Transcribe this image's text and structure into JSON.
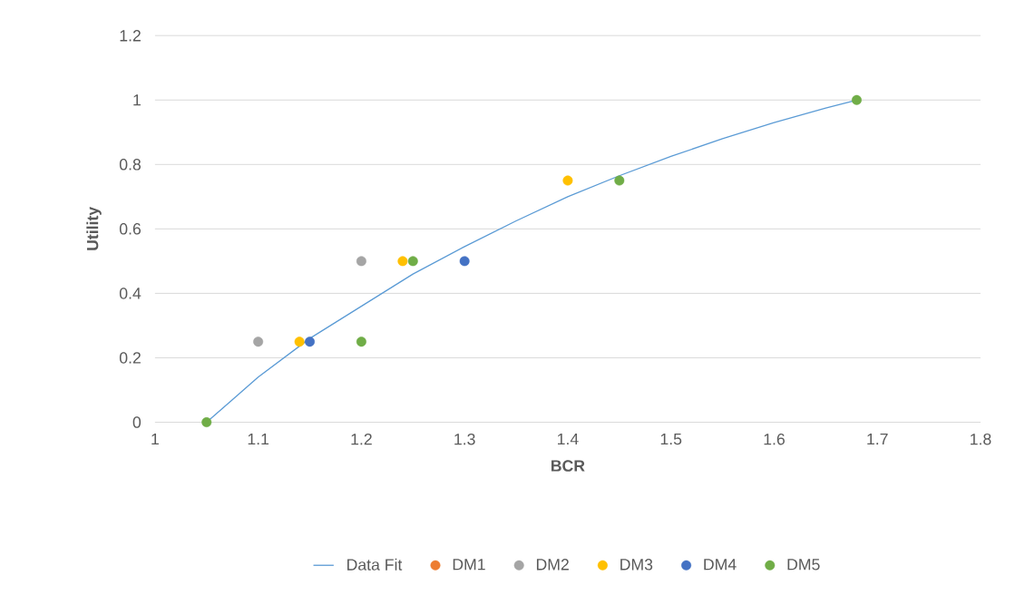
{
  "chart_data": {
    "type": "scatter",
    "xlabel": "BCR",
    "ylabel": "Utility",
    "xlim": [
      1,
      1.8
    ],
    "xticks": [
      1,
      1.1,
      1.2,
      1.3,
      1.4,
      1.5,
      1.6,
      1.7,
      1.8
    ],
    "ylim": [
      0,
      1.2
    ],
    "yticks": [
      0,
      0.2,
      0.4,
      0.6,
      0.8,
      1,
      1.2
    ],
    "grid": "y",
    "legend": "bottom",
    "marker": "circle",
    "series": [
      {
        "name": "Data Fit",
        "type": "line",
        "line_style": "solid",
        "marker": "none",
        "color": "#5b9bd5",
        "x": [
          1.05,
          1.1,
          1.15,
          1.2,
          1.25,
          1.3,
          1.35,
          1.4,
          1.45,
          1.5,
          1.55,
          1.6,
          1.65,
          1.68
        ],
        "values": [
          0,
          0.14,
          0.26,
          0.36,
          0.46,
          0.545,
          0.625,
          0.7,
          0.765,
          0.825,
          0.88,
          0.93,
          0.975,
          1
        ]
      },
      {
        "name": "DM1",
        "color": "#ed7d31"
      },
      {
        "name": "DM2",
        "color": "#a5a5a5",
        "x": [
          1.1,
          1.2
        ],
        "values": [
          0.25,
          0.5
        ]
      },
      {
        "name": "DM3",
        "color": "#ffc000",
        "x": [
          1.14,
          1.24,
          1.4
        ],
        "values": [
          0.25,
          0.5,
          0.75
        ]
      },
      {
        "name": "DM4",
        "color": "#4472c4",
        "x": [
          1.15,
          1.3
        ],
        "values": [
          0.25,
          0.5
        ]
      },
      {
        "name": "DM5",
        "color": "#70ad47",
        "x": [
          1.05,
          1.2,
          1.25,
          1.45,
          1.68
        ],
        "values": [
          0,
          0.25,
          0.5,
          0.75,
          1
        ]
      }
    ]
  }
}
